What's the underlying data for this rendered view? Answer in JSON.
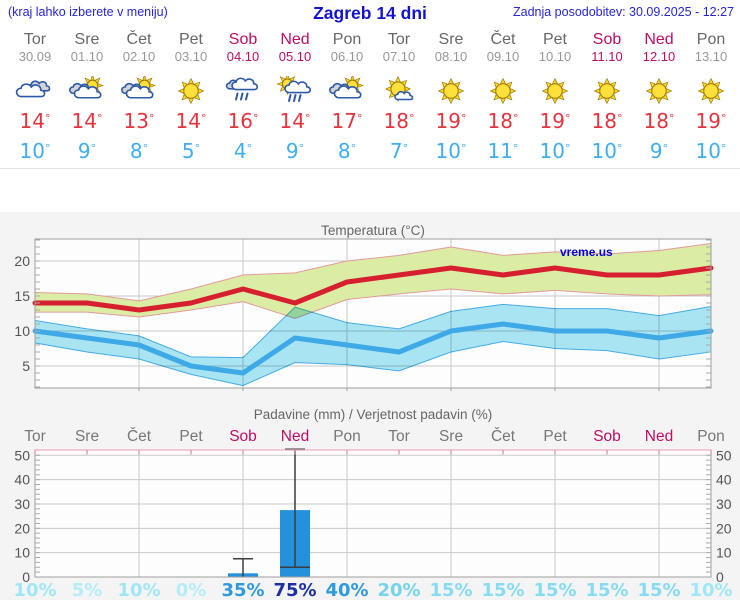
{
  "header": {
    "hint": "(kraj lahko izberete v meniju)",
    "title": "Zagreb 14 dni",
    "updated": "Zadnja posodobitev: 30.09.2025 - 12:27"
  },
  "symbols": {
    "degree": "°"
  },
  "colors": {
    "header_blue": "#1313cf",
    "weekend": "#bd0e63",
    "weekday": "#676767",
    "high_temp": "#e5333e",
    "low_temp": "#3eadf2",
    "max_line": "#d6202f",
    "min_line": "#3fa9e8",
    "max_band": "#dbeca4",
    "min_band": "#a9e6f4",
    "bar_blue": "#2491dc",
    "watermark_blue": "#0000dd"
  },
  "forecast": {
    "days": [
      {
        "name": "Tor",
        "date": "30.09",
        "weekend": false,
        "icon": "cloudy",
        "high": "14",
        "low": "10"
      },
      {
        "name": "Sre",
        "date": "01.10",
        "weekend": false,
        "icon": "partly",
        "high": "14",
        "low": "9"
      },
      {
        "name": "Čet",
        "date": "02.10",
        "weekend": false,
        "icon": "partly",
        "high": "13",
        "low": "8"
      },
      {
        "name": "Pet",
        "date": "03.10",
        "weekend": false,
        "icon": "sunny",
        "high": "14",
        "low": "5"
      },
      {
        "name": "Sob",
        "date": "04.10",
        "weekend": true,
        "icon": "rain",
        "high": "16",
        "low": "4"
      },
      {
        "name": "Ned",
        "date": "05.10",
        "weekend": true,
        "icon": "sun-rain",
        "high": "14",
        "low": "9"
      },
      {
        "name": "Pon",
        "date": "06.10",
        "weekend": false,
        "icon": "partly",
        "high": "17",
        "low": "8"
      },
      {
        "name": "Tor",
        "date": "07.10",
        "weekend": false,
        "icon": "mostly-sunny",
        "high": "18",
        "low": "7"
      },
      {
        "name": "Sre",
        "date": "08.10",
        "weekend": false,
        "icon": "sunny",
        "high": "19",
        "low": "10"
      },
      {
        "name": "Čet",
        "date": "09.10",
        "weekend": false,
        "icon": "sunny",
        "high": "18",
        "low": "11"
      },
      {
        "name": "Pet",
        "date": "10.10",
        "weekend": false,
        "icon": "sunny",
        "high": "19",
        "low": "10"
      },
      {
        "name": "Sob",
        "date": "11.10",
        "weekend": true,
        "icon": "sunny",
        "high": "18",
        "low": "10"
      },
      {
        "name": "Ned",
        "date": "12.10",
        "weekend": true,
        "icon": "sunny",
        "high": "18",
        "low": "9"
      },
      {
        "name": "Pon",
        "date": "13.10",
        "weekend": false,
        "icon": "sunny",
        "high": "19",
        "low": "10"
      }
    ]
  },
  "chart_data": [
    {
      "type": "line",
      "title": "Temperatura (°C)",
      "watermark": "vreme.us",
      "yticks": [
        5,
        10,
        15,
        20
      ],
      "ylim": [
        1.9,
        23.1
      ],
      "grid_day_indices": [
        2,
        4,
        6,
        8,
        10,
        12
      ],
      "series": [
        {
          "name": "max",
          "values": [
            14,
            14,
            13,
            14,
            16,
            14,
            17,
            18,
            19,
            18,
            19,
            18,
            18,
            19
          ]
        },
        {
          "name": "max_upper",
          "values": [
            15.5,
            15.3,
            14.3,
            16,
            18,
            18.3,
            20,
            20.8,
            22,
            20.8,
            21.3,
            21,
            21.5,
            22.5
          ]
        },
        {
          "name": "max_lower",
          "values": [
            12.7,
            12.7,
            12,
            13,
            14.2,
            11.8,
            14.5,
            15.3,
            16,
            15.3,
            15.8,
            15.3,
            15,
            15.2
          ]
        },
        {
          "name": "min",
          "values": [
            10,
            9,
            8,
            5,
            4,
            9,
            8,
            7,
            10,
            11,
            10,
            10,
            9,
            10
          ]
        },
        {
          "name": "min_upper",
          "values": [
            11.5,
            10.3,
            9.3,
            6.3,
            6.2,
            13.4,
            11.2,
            10.3,
            12.8,
            13.8,
            13.2,
            13.2,
            12.2,
            13.5
          ]
        },
        {
          "name": "min_lower",
          "values": [
            8.3,
            7,
            6,
            3.8,
            2.2,
            5.5,
            5.2,
            4.3,
            7,
            8.5,
            7.5,
            7.2,
            6,
            7
          ]
        }
      ]
    },
    {
      "type": "bar",
      "title": "Padavine (mm) / Verjetnost padavin (%)",
      "categories": [
        "Tor",
        "Sre",
        "Čet",
        "Pet",
        "Sob",
        "Ned",
        "Pon",
        "Tor",
        "Sre",
        "Čet",
        "Pet",
        "Sob",
        "Ned",
        "Pon"
      ],
      "weekend": [
        false,
        false,
        false,
        false,
        true,
        true,
        false,
        false,
        false,
        false,
        false,
        true,
        true,
        false
      ],
      "yticks": [
        0,
        10,
        20,
        30,
        40,
        50
      ],
      "ylim": [
        0,
        52
      ],
      "bars": [
        {
          "day_index": 4,
          "value": 1.5,
          "whisker_low": 0,
          "whisker_high": 7.5
        },
        {
          "day_index": 5,
          "value": 27.5,
          "whisker_low": 4,
          "whisker_high": 52.5
        }
      ],
      "probabilities": [
        {
          "label": "10%",
          "color": "#9fe7f7"
        },
        {
          "label": "5%",
          "color": "#b4edf9"
        },
        {
          "label": "10%",
          "color": "#9fe7f7"
        },
        {
          "label": "0%",
          "color": "#b4edf9"
        },
        {
          "label": "35%",
          "color": "#2f9ade"
        },
        {
          "label": "75%",
          "color": "#1e2fa6"
        },
        {
          "label": "40%",
          "color": "#2f9ade"
        },
        {
          "label": "20%",
          "color": "#74d4ee"
        },
        {
          "label": "15%",
          "color": "#86dcf2"
        },
        {
          "label": "15%",
          "color": "#86dcf2"
        },
        {
          "label": "15%",
          "color": "#86dcf2"
        },
        {
          "label": "15%",
          "color": "#86dcf2"
        },
        {
          "label": "15%",
          "color": "#86dcf2"
        },
        {
          "label": "10%",
          "color": "#9fe7f7"
        }
      ]
    }
  ]
}
